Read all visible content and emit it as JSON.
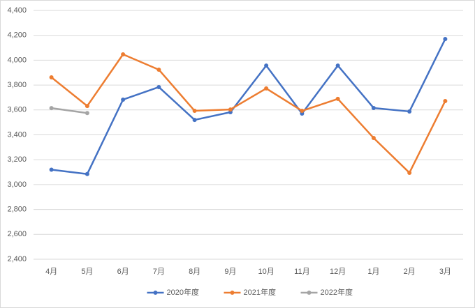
{
  "chart_data": {
    "type": "line",
    "categories": [
      "4月",
      "5月",
      "6月",
      "7月",
      "8月",
      "9月",
      "10月",
      "11月",
      "12月",
      "1月",
      "2月",
      "3月"
    ],
    "series": [
      {
        "name": "2020年度",
        "color": "#4472c4",
        "values": [
          3120,
          3085,
          3683,
          3784,
          3520,
          3582,
          3957,
          3571,
          3957,
          3616,
          3588,
          4170
        ]
      },
      {
        "name": "2021年度",
        "color": "#ed7d31",
        "values": [
          3862,
          3632,
          4047,
          3924,
          3593,
          3604,
          3773,
          3593,
          3689,
          3375,
          3095,
          3672
        ]
      },
      {
        "name": "2022年度",
        "color": "#a5a5a5",
        "values": [
          3615,
          3575,
          null,
          null,
          null,
          null,
          null,
          null,
          null,
          null,
          null,
          null
        ]
      }
    ],
    "ylim": [
      2400,
      4400
    ],
    "yticks": [
      {
        "value": 2400,
        "label": "2,400"
      },
      {
        "value": 2600,
        "label": "2,600"
      },
      {
        "value": 2800,
        "label": "2,800"
      },
      {
        "value": 3000,
        "label": "3,000"
      },
      {
        "value": 3200,
        "label": "3,200"
      },
      {
        "value": 3400,
        "label": "3,400"
      },
      {
        "value": 3600,
        "label": "3,600"
      },
      {
        "value": 3800,
        "label": "3,800"
      },
      {
        "value": 4000,
        "label": "4,000"
      },
      {
        "value": 4200,
        "label": "4,200"
      },
      {
        "value": 4400,
        "label": "4,400"
      }
    ],
    "grid": true,
    "legend": "bottom"
  }
}
